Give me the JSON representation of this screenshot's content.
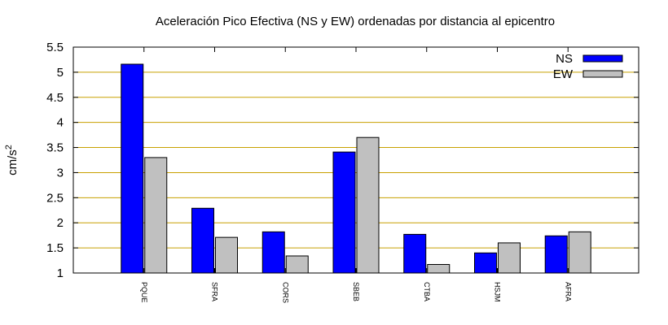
{
  "chart_data": {
    "type": "bar",
    "title": "Aceleración Pico Efectiva (NS y EW) ordenadas por distancia al epicentro",
    "ylabel": "cm/s",
    "ylabel_sup": "2",
    "xlabel": "",
    "ylim": [
      1,
      5.5
    ],
    "yticks": [
      "1",
      "1.5",
      "2",
      "2.5",
      "3",
      "3.5",
      "4",
      "4.5",
      "5",
      "5.5"
    ],
    "grid": "horizontal",
    "grid_color": "#c8a000",
    "legend_position": "top-right",
    "categories": [
      "PQUE",
      "SFRA",
      "CORS",
      "SBEB",
      "CTBA",
      "HSJM",
      "AFRA"
    ],
    "series": [
      {
        "name": "NS",
        "color": "#0000ff",
        "values": [
          5.16,
          2.29,
          1.82,
          3.41,
          1.77,
          1.4,
          1.74
        ]
      },
      {
        "name": "EW",
        "color": "#c0c0c0",
        "values": [
          3.3,
          1.71,
          1.34,
          3.7,
          1.17,
          1.6,
          1.82
        ]
      }
    ]
  }
}
